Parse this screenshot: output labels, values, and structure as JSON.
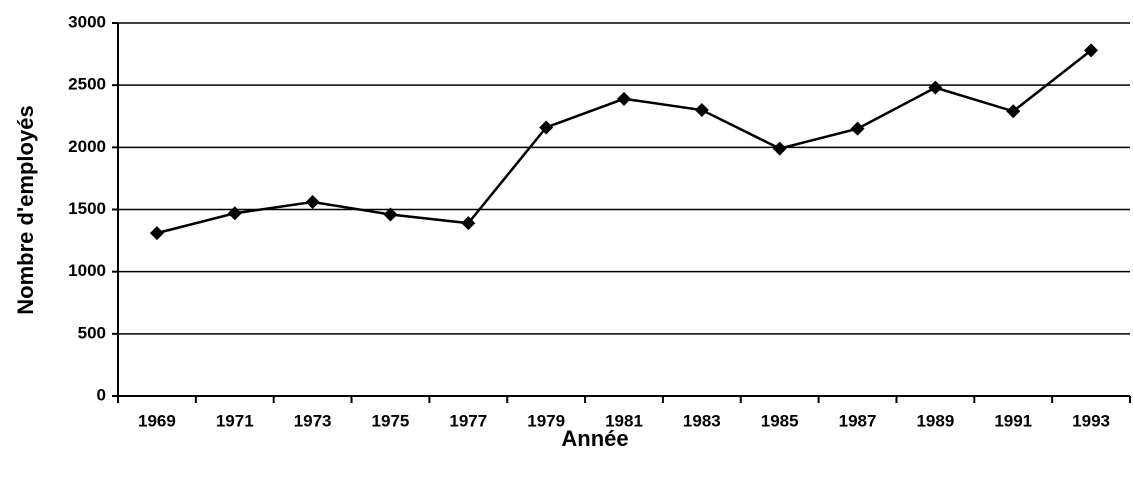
{
  "chart_data": {
    "type": "line",
    "x_label": "Année",
    "y_label": "Nombre d'employés",
    "categories": [
      "1969",
      "1971",
      "1973",
      "1975",
      "1977",
      "1979",
      "1981",
      "1983",
      "1985",
      "1987",
      "1989",
      "1991",
      "1993"
    ],
    "values": [
      1310,
      1470,
      1560,
      1460,
      1390,
      2160,
      2390,
      2300,
      1990,
      2150,
      2480,
      2290,
      2780
    ],
    "color": "#000000",
    "ylim": [
      0,
      3000
    ],
    "yticks": [
      0,
      500,
      1000,
      1500,
      2000,
      2500,
      3000
    ],
    "grid": true
  }
}
